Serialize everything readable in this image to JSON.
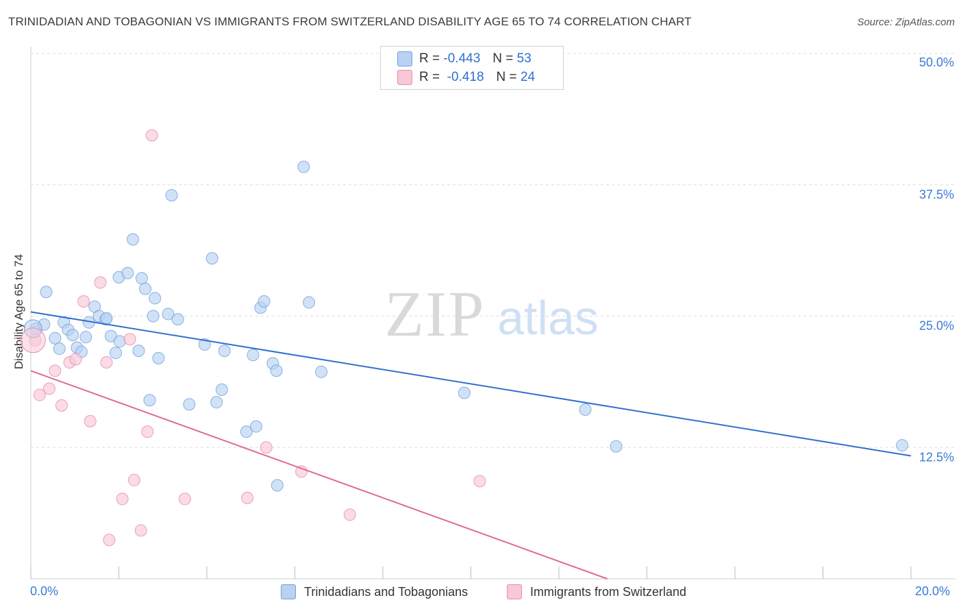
{
  "title": "TRINIDADIAN AND TOBAGONIAN VS IMMIGRANTS FROM SWITZERLAND DISABILITY AGE 65 TO 74 CORRELATION CHART",
  "source": "Source: ZipAtlas.com",
  "watermark": {
    "zip": "ZIP",
    "atlas": "atlas"
  },
  "legend": {
    "rows": [
      {
        "r_label": "R = ",
        "r_value": "-0.443",
        "n_label": "N = ",
        "n_value": "53"
      },
      {
        "r_label": "R = ",
        "r_value": " -0.418",
        "n_label": "N = ",
        "n_value": "24"
      }
    ]
  },
  "bottom_legend": {
    "series1": "Trinidadians and Tobagonians",
    "series2": "Immigrants from Switzerland"
  },
  "x_ticks": {
    "min": "0.0%",
    "max": "20.0%"
  },
  "chart_data": {
    "type": "scatter",
    "ylabel": "Disability Age 65 to 74",
    "xlabel": "",
    "xlim": [
      0,
      20
    ],
    "ylim": [
      0,
      50
    ],
    "y_ticks": [
      {
        "value": 12.5,
        "label": "12.5%"
      },
      {
        "value": 25.0,
        "label": "25.0%"
      },
      {
        "value": 37.5,
        "label": "37.5%"
      },
      {
        "value": 50.0,
        "label": "50.0%"
      }
    ],
    "grid": "dashed horizontal",
    "colors": {
      "blue": "#6e9fdc",
      "blue_fill": "#b9d2f3",
      "blue_line": "#2f6fcf",
      "pink": "#e88aaa",
      "pink_fill": "#f8c8d8",
      "pink_line": "#e06a96"
    },
    "series": [
      {
        "color": "blue",
        "trend": {
          "x": [
            0,
            20
          ],
          "y": [
            25.4,
            11.7
          ]
        },
        "points": [
          [
            0.12,
            23.8
          ],
          [
            0.3,
            24.2
          ],
          [
            0.35,
            27.3
          ],
          [
            0.55,
            22.9
          ],
          [
            0.65,
            21.9
          ],
          [
            0.75,
            24.4
          ],
          [
            0.85,
            23.7
          ],
          [
            0.95,
            23.2
          ],
          [
            1.05,
            22.0
          ],
          [
            1.15,
            21.6
          ],
          [
            1.25,
            23.0
          ],
          [
            1.32,
            24.4
          ],
          [
            1.45,
            25.9
          ],
          [
            1.55,
            25.0
          ],
          [
            1.7,
            24.7
          ],
          [
            1.82,
            23.1
          ],
          [
            1.93,
            21.5
          ],
          [
            2.02,
            22.6
          ],
          [
            2.0,
            28.7
          ],
          [
            2.2,
            29.1
          ],
          [
            2.32,
            32.3
          ],
          [
            2.52,
            28.6
          ],
          [
            2.6,
            27.6
          ],
          [
            2.78,
            25.0
          ],
          [
            2.82,
            26.7
          ],
          [
            2.9,
            21.0
          ],
          [
            3.12,
            25.2
          ],
          [
            3.2,
            36.5
          ],
          [
            3.34,
            24.7
          ],
          [
            3.6,
            16.6
          ],
          [
            3.95,
            22.3
          ],
          [
            4.12,
            30.5
          ],
          [
            4.22,
            16.8
          ],
          [
            4.34,
            18.0
          ],
          [
            4.4,
            21.7
          ],
          [
            4.9,
            14.0
          ],
          [
            5.12,
            14.5
          ],
          [
            5.05,
            21.3
          ],
          [
            5.22,
            25.8
          ],
          [
            5.3,
            26.4
          ],
          [
            5.5,
            20.5
          ],
          [
            5.58,
            19.8
          ],
          [
            5.6,
            8.9
          ],
          [
            6.2,
            39.2
          ],
          [
            6.32,
            26.3
          ],
          [
            6.6,
            19.7
          ],
          [
            9.85,
            17.7
          ],
          [
            12.6,
            16.1
          ],
          [
            13.3,
            12.6
          ],
          [
            19.8,
            12.7
          ],
          [
            2.45,
            21.7
          ],
          [
            1.72,
            24.8
          ],
          [
            2.7,
            17.0
          ]
        ]
      },
      {
        "color": "pink",
        "trend": {
          "x": [
            0,
            13.1
          ],
          "y": [
            19.8,
            0
          ]
        },
        "points": [
          [
            0.1,
            22.7
          ],
          [
            0.2,
            17.5
          ],
          [
            0.55,
            19.8
          ],
          [
            0.42,
            18.1
          ],
          [
            0.7,
            16.5
          ],
          [
            0.88,
            20.6
          ],
          [
            1.02,
            20.9
          ],
          [
            1.2,
            26.4
          ],
          [
            1.35,
            15.0
          ],
          [
            1.58,
            28.2
          ],
          [
            1.72,
            20.6
          ],
          [
            2.25,
            22.8
          ],
          [
            2.08,
            7.6
          ],
          [
            2.35,
            9.4
          ],
          [
            2.5,
            4.6
          ],
          [
            2.65,
            14.0
          ],
          [
            2.75,
            42.2
          ],
          [
            3.5,
            7.6
          ],
          [
            1.78,
            3.7
          ],
          [
            4.92,
            7.7
          ],
          [
            5.35,
            12.5
          ],
          [
            6.15,
            10.2
          ],
          [
            7.25,
            6.1
          ],
          [
            10.2,
            9.3
          ]
        ]
      }
    ]
  }
}
